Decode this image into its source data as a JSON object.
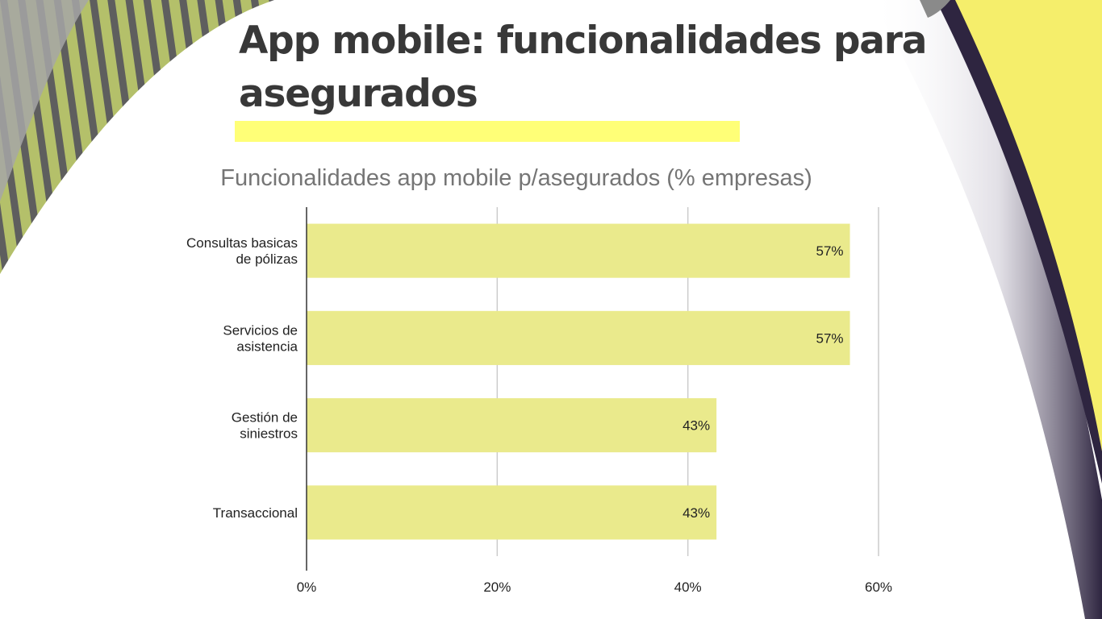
{
  "slide": {
    "title": "App mobile: funcionalidades para asegurados"
  },
  "colors": {
    "title_text": "#383838",
    "highlight": "#ffff77",
    "bar": "#eaea8c",
    "grid": "#cccccc",
    "axis": "#333333",
    "stripe_olive": "#b4c06a",
    "stripe_dark": "#5e5e5e",
    "corner_yellow": "#f5ee6b",
    "shadow_purple": "#2e2540"
  },
  "chart_data": {
    "type": "bar",
    "orientation": "horizontal",
    "title": "Funcionalidades app mobile p/asegurados (% empresas)",
    "categories": [
      [
        "Consultas basicas",
        "de pólizas"
      ],
      [
        "Servicios de",
        "asistencia"
      ],
      [
        "Gestión de",
        "siniestros"
      ],
      [
        "Transaccional"
      ]
    ],
    "values": [
      57,
      57,
      43,
      43
    ],
    "value_labels": [
      "57%",
      "57%",
      "43%",
      "43%"
    ],
    "xlim": [
      0,
      60
    ],
    "xticks": [
      0,
      20,
      40,
      60
    ],
    "xtick_labels": [
      "0%",
      "20%",
      "40%",
      "60%"
    ],
    "grid": true,
    "legend": "none"
  }
}
